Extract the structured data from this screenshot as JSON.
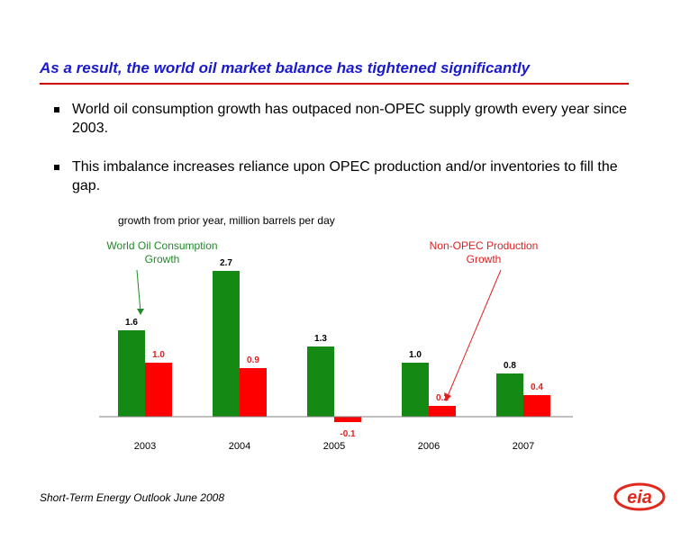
{
  "slide": {
    "title": "As a result, the world oil market balance has tightened significantly",
    "bullets": [
      "World oil consumption growth has outpaced non-OPEC supply growth every year since 2003.",
      "This imbalance increases reliance upon OPEC production and/or inventories to fill the gap."
    ],
    "source": "Short-Term Energy Outlook June 2008",
    "logo_text": "eia"
  },
  "chart_data": {
    "type": "bar",
    "title": "growth from prior year, million barrels per day",
    "categories": [
      "2003",
      "2004",
      "2005",
      "2006",
      "2007"
    ],
    "series": [
      {
        "name": "World Oil Consumption Growth",
        "color": "#148a14",
        "values": [
          1.6,
          2.7,
          1.3,
          1.0,
          0.8
        ]
      },
      {
        "name": "Non-OPEC Production Growth",
        "color": "#ff0000",
        "values": [
          1.0,
          0.9,
          -0.1,
          0.2,
          0.4
        ]
      }
    ],
    "ylim": [
      -0.1,
      2.7
    ],
    "grid": false,
    "data_labels": true
  },
  "colors": {
    "title": "#1a1acc",
    "rule": "#cc0000",
    "logo": "#e0281e"
  }
}
